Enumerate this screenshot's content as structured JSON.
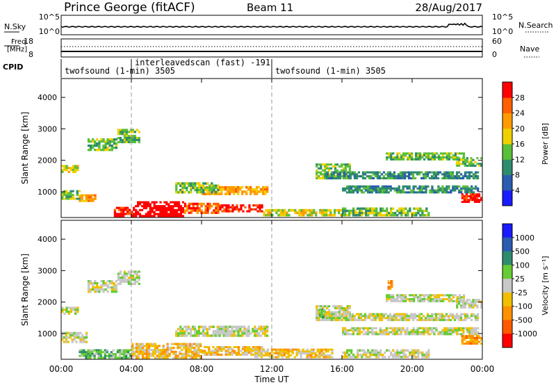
{
  "header": {
    "station": "Prince George (fitACF)",
    "beam": "Beam 11",
    "date": "28/Aug/2017"
  },
  "noise_panel": {
    "left_label": "N.Sky",
    "right_label": "N.Search",
    "y_ticks_top": "10^5",
    "y_ticks_bottom": "10^0"
  },
  "freq_panel": {
    "left_label_1": "Freq.",
    "left_label_2": "[MHz]",
    "left_ticks": [
      "18",
      "8"
    ],
    "right_ticks": [
      "60",
      "0"
    ],
    "right_label": "Nave",
    "cpid_label": "CPID"
  },
  "cpid_segments": [
    {
      "label": "twofsound (1-min) 3505",
      "start_hour": 0,
      "end_hour": 4
    },
    {
      "label": "interleavedscan (fast) -191",
      "start_hour": 4,
      "end_hour": 12
    },
    {
      "label": "twofsound (1-min) 3505",
      "start_hour": 12,
      "end_hour": 24
    }
  ],
  "chart_data": [
    {
      "type": "heatmap",
      "name": "power",
      "ylabel": "Slant Range [km]",
      "ylim": [
        180,
        4600
      ],
      "yticks": [
        "1000",
        "2000",
        "3000",
        "4000"
      ],
      "xlim": [
        0,
        24
      ],
      "colorbar_label": "Power [dB]",
      "colorbar_ticks": [
        "4",
        "8",
        "12",
        "16",
        "20",
        "24",
        "28"
      ],
      "colors": [
        "#1a1aff",
        "#2a5cb0",
        "#2e8b6e",
        "#5bbf3a",
        "#f0d000",
        "#ff9a00",
        "#ff6000",
        "#ff0000"
      ],
      "bands": [
        {
          "h0": 0.0,
          "h1": 1.0,
          "r0": 1600,
          "r1": 1850,
          "level": 4
        },
        {
          "h0": 0.0,
          "h1": 1.1,
          "r0": 750,
          "r1": 1050,
          "level": 3
        },
        {
          "h0": 1.0,
          "h1": 2.0,
          "r0": 680,
          "r1": 920,
          "level": 5
        },
        {
          "h0": 1.5,
          "h1": 3.2,
          "r0": 2300,
          "r1": 2700,
          "level": 3
        },
        {
          "h0": 3.2,
          "h1": 4.5,
          "r0": 2550,
          "r1": 3000,
          "level": 3
        },
        {
          "h0": 3.0,
          "h1": 4.2,
          "r0": 200,
          "r1": 520,
          "level": 7
        },
        {
          "h0": 4.2,
          "h1": 7.0,
          "r0": 200,
          "r1": 700,
          "level": 8
        },
        {
          "h0": 7.0,
          "h1": 9.0,
          "r0": 300,
          "r1": 650,
          "level": 6
        },
        {
          "h0": 9.0,
          "h1": 11.5,
          "r0": 350,
          "r1": 600,
          "level": 7
        },
        {
          "h0": 8.0,
          "h1": 11.8,
          "r0": 900,
          "r1": 1180,
          "level": 5
        },
        {
          "h0": 6.5,
          "h1": 9.0,
          "r0": 950,
          "r1": 1300,
          "level": 3
        },
        {
          "h0": 11.5,
          "h1": 16.0,
          "r0": 220,
          "r1": 450,
          "level": 4
        },
        {
          "h0": 14.5,
          "h1": 16.5,
          "r0": 1400,
          "r1": 1900,
          "level": 3
        },
        {
          "h0": 15.0,
          "h1": 23.8,
          "r0": 1400,
          "r1": 1650,
          "level": 2
        },
        {
          "h0": 16.0,
          "h1": 23.8,
          "r0": 950,
          "r1": 1200,
          "level": 2
        },
        {
          "h0": 16.0,
          "h1": 21.0,
          "r0": 220,
          "r1": 500,
          "level": 3
        },
        {
          "h0": 18.5,
          "h1": 23.0,
          "r0": 2000,
          "r1": 2250,
          "level": 3
        },
        {
          "h0": 22.5,
          "h1": 24.0,
          "r0": 1800,
          "r1": 2100,
          "level": 3
        },
        {
          "h0": 22.8,
          "h1": 24.0,
          "r0": 650,
          "r1": 950,
          "level": 7
        }
      ]
    },
    {
      "type": "heatmap",
      "name": "velocity",
      "ylabel": "Slant Range [km]",
      "ylim": [
        180,
        4600
      ],
      "yticks": [
        "1000",
        "2000",
        "3000",
        "4000"
      ],
      "xlim": [
        0,
        24
      ],
      "xticks": [
        "00:00",
        "04:00",
        "08:00",
        "12:00",
        "16:00",
        "20:00",
        "00:00"
      ],
      "xlabel": "Time UT",
      "colorbar_label": "Velocity [m s⁻¹]",
      "colorbar_ticks": [
        "1000",
        "500",
        "100",
        "25",
        "-25",
        "-100",
        "-500",
        "-1000"
      ],
      "colors": [
        "#1a1aff",
        "#2a5cb0",
        "#2e8b6e",
        "#66cc33",
        "#c8c8c8",
        "#f0c000",
        "#ff9000",
        "#ff5a00",
        "#ff0000"
      ],
      "bands": [
        {
          "h0": 0.0,
          "h1": 1.0,
          "r0": 1600,
          "r1": 1850,
          "level": 4
        },
        {
          "h0": 0.0,
          "h1": 1.5,
          "r0": 700,
          "r1": 1050,
          "level": 4
        },
        {
          "h0": 1.5,
          "h1": 3.2,
          "r0": 2300,
          "r1": 2700,
          "level": 4
        },
        {
          "h0": 3.2,
          "h1": 4.5,
          "r0": 2550,
          "r1": 3000,
          "level": 4
        },
        {
          "h0": 1.0,
          "h1": 4.0,
          "r0": 200,
          "r1": 500,
          "level": 3
        },
        {
          "h0": 4.0,
          "h1": 8.0,
          "r0": 200,
          "r1": 700,
          "level": 5
        },
        {
          "h0": 6.5,
          "h1": 11.8,
          "r0": 900,
          "r1": 1250,
          "level": 4
        },
        {
          "h0": 8.0,
          "h1": 11.5,
          "r0": 300,
          "r1": 600,
          "level": 5
        },
        {
          "h0": 11.0,
          "h1": 15.5,
          "r0": 220,
          "r1": 520,
          "level": 5
        },
        {
          "h0": 14.5,
          "h1": 16.5,
          "r0": 1400,
          "r1": 1900,
          "level": 4
        },
        {
          "h0": 15.0,
          "h1": 23.8,
          "r0": 1400,
          "r1": 1650,
          "level": 4
        },
        {
          "h0": 16.0,
          "h1": 23.8,
          "r0": 950,
          "r1": 1200,
          "level": 4
        },
        {
          "h0": 16.0,
          "h1": 21.0,
          "r0": 220,
          "r1": 500,
          "level": 4
        },
        {
          "h0": 18.5,
          "h1": 23.0,
          "r0": 2000,
          "r1": 2250,
          "level": 4
        },
        {
          "h0": 22.5,
          "h1": 24.0,
          "r0": 1800,
          "r1": 2100,
          "level": 4
        },
        {
          "h0": 22.8,
          "h1": 24.0,
          "r0": 650,
          "r1": 950,
          "level": 6
        },
        {
          "h0": 18.6,
          "h1": 18.9,
          "r0": 2400,
          "r1": 2700,
          "level": 6
        },
        {
          "h0": 14.7,
          "h1": 15.0,
          "r0": 1500,
          "r1": 1800,
          "level": 3
        }
      ]
    }
  ]
}
